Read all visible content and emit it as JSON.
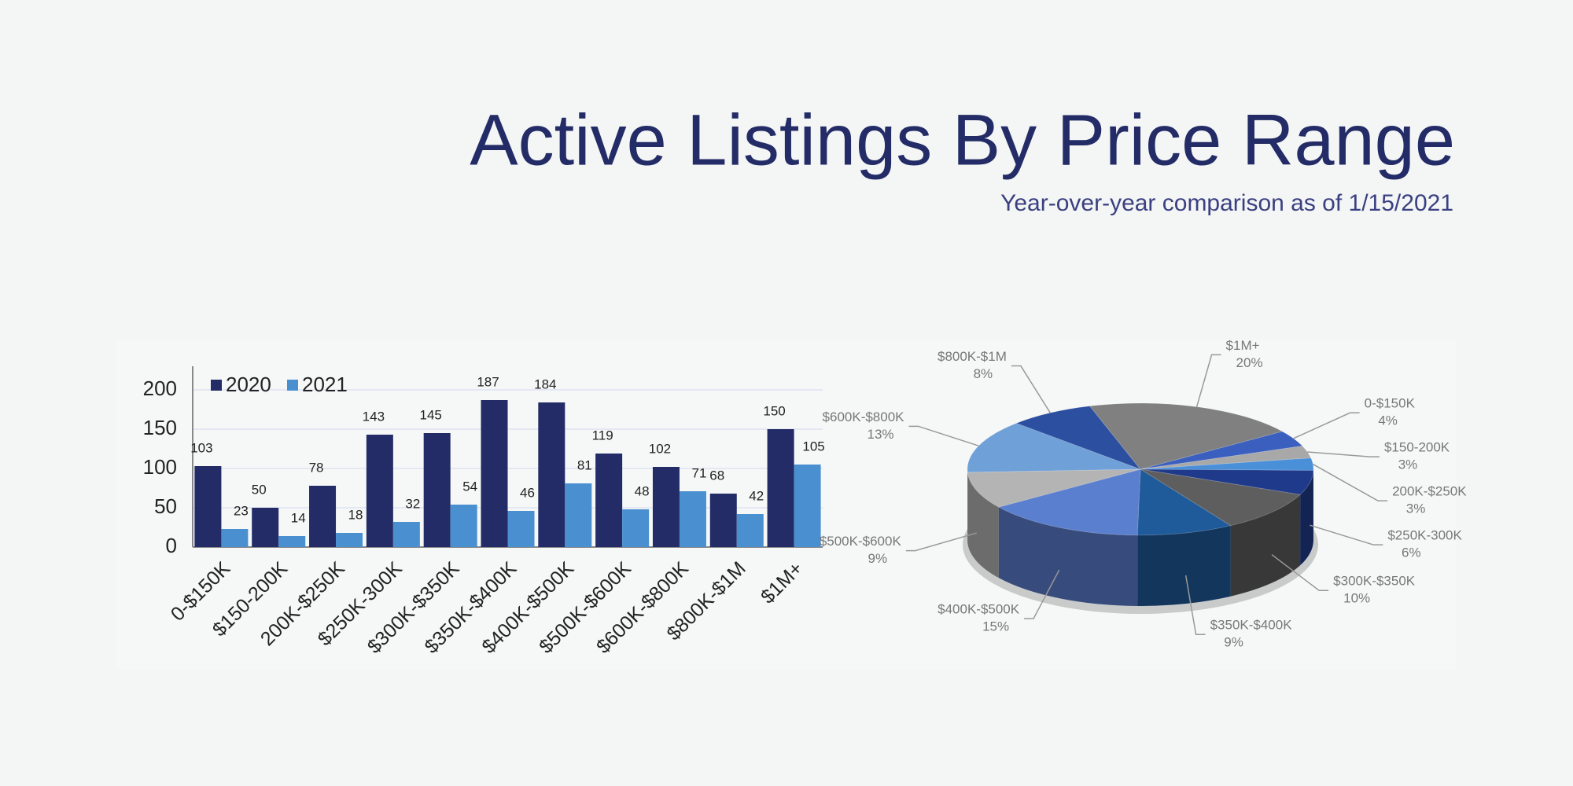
{
  "header": {
    "title": "Active Listings By Price Range",
    "subtitle": "Year-over-year comparison as of 1/15/2021"
  },
  "chart_data": [
    {
      "type": "bar",
      "categories": [
        "0-$150K",
        "$150-200K",
        "200K-$250K",
        "$250K-300K",
        "$300K-$350K",
        "$350K-$400K",
        "$400K-$500K",
        "$500K-$600K",
        "$600K-$800K",
        "$800K-$1M",
        "$1M+"
      ],
      "series": [
        {
          "name": "2020",
          "color": "#232c66",
          "values": [
            103,
            50,
            78,
            143,
            145,
            187,
            184,
            119,
            102,
            68,
            150
          ]
        },
        {
          "name": "2021",
          "color": "#4a8fd0",
          "values": [
            23,
            14,
            18,
            32,
            54,
            46,
            81,
            48,
            71,
            42,
            105
          ]
        }
      ],
      "ylim": [
        0,
        230
      ],
      "yticks": [
        0,
        50,
        100,
        150,
        200
      ],
      "grid": true,
      "legend": "top-left"
    },
    {
      "type": "pie",
      "categories": [
        "0-$150K",
        "$150-200K",
        "200K-$250K",
        "$250K-300K",
        "$300K-$350K",
        "$350K-$400K",
        "$400K-$500K",
        "$500K-$600K",
        "$600K-$800K",
        "$800K-$1M",
        "$1M+"
      ],
      "values": [
        4,
        3,
        3,
        6,
        10,
        9,
        15,
        9,
        13,
        8,
        20
      ],
      "value_labels": [
        "4%",
        "3%",
        "3%",
        "6%",
        "10%",
        "9%",
        "15%",
        "9%",
        "13%",
        "8%",
        "20%"
      ],
      "colors": [
        "#3a5fbf",
        "#a8a8a8",
        "#4a90d9",
        "#1f3a8a",
        "#5e5e5e",
        "#1f5a9a",
        "#5b7fcf",
        "#b4b4b4",
        "#6fa0d8",
        "#2c4fa0",
        "#808080"
      ]
    }
  ]
}
